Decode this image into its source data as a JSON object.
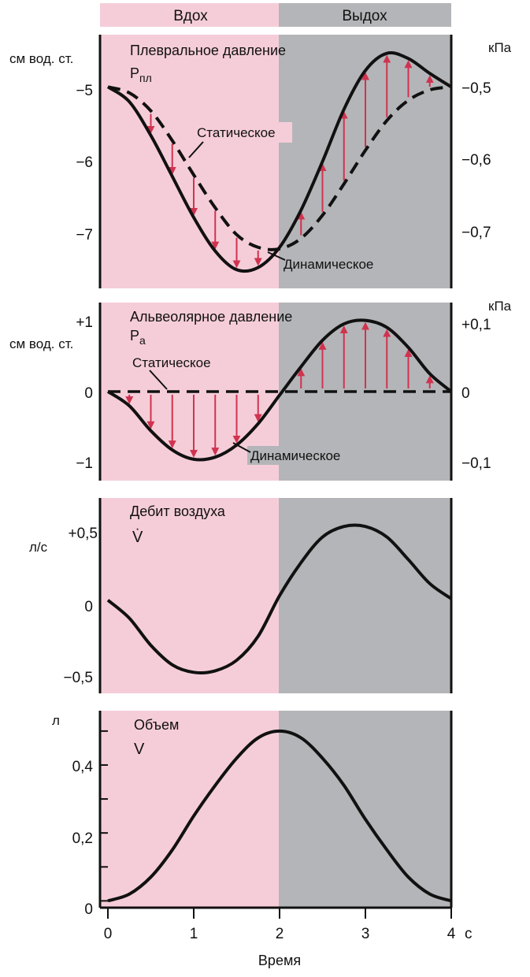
{
  "phases": {
    "inhale": "Вдох",
    "exhale": "Выдох"
  },
  "colors": {
    "inhale_bg": "#f5cdd9",
    "exhale_bg": "#b4b5b8",
    "arrow": "#d0334f",
    "curve": "#111111"
  },
  "xaxis": {
    "label": "Время",
    "unit": "с",
    "ticks": [
      "0",
      "1",
      "2",
      "3",
      "4"
    ]
  },
  "chart_data": [
    {
      "type": "line",
      "title": "Плевральное давление",
      "symbol": "P",
      "subscript": "пл",
      "ylabel_left": "см вод. ст.",
      "ylabel_right": "кПа",
      "left_ticks": [
        "−5",
        "−6",
        "−7"
      ],
      "right_ticks": [
        "−0,5",
        "−0,6",
        "−0,7"
      ],
      "ylim": [
        -7.7,
        -4.3
      ],
      "xlim": [
        0,
        4
      ],
      "x": [
        0,
        0.25,
        0.5,
        0.75,
        1,
        1.25,
        1.5,
        1.75,
        2,
        2.25,
        2.5,
        2.75,
        3,
        3.25,
        3.5,
        3.75,
        4
      ],
      "series": [
        {
          "name": "Динамическое",
          "style": "solid",
          "values": [
            -5.0,
            -5.2,
            -5.65,
            -6.2,
            -6.75,
            -7.2,
            -7.45,
            -7.42,
            -7.15,
            -6.65,
            -6.0,
            -5.3,
            -4.78,
            -4.55,
            -4.62,
            -4.82,
            -5.0
          ]
        },
        {
          "name": "Статическое",
          "style": "dashed",
          "values": [
            -5.0,
            -5.08,
            -5.32,
            -5.72,
            -6.18,
            -6.62,
            -6.98,
            -7.15,
            -7.17,
            -7.03,
            -6.72,
            -6.3,
            -5.85,
            -5.45,
            -5.18,
            -5.04,
            -5.0
          ]
        }
      ],
      "annotations": [
        "Статическое",
        "Динамическое"
      ]
    },
    {
      "type": "line",
      "title": "Альвеолярное давление",
      "symbol": "P",
      "subscript": "a",
      "ylabel_left": "см вод. ст.",
      "ylabel_right": "кПа",
      "left_ticks": [
        "+1",
        "0",
        "−1"
      ],
      "right_ticks": [
        "+0,1",
        "0",
        "−0,1"
      ],
      "ylim": [
        -1.25,
        1.25
      ],
      "xlim": [
        0,
        4
      ],
      "x": [
        0,
        0.25,
        0.5,
        0.75,
        1,
        1.25,
        1.5,
        1.75,
        2,
        2.25,
        2.5,
        2.75,
        3,
        3.25,
        3.5,
        3.75,
        4
      ],
      "series": [
        {
          "name": "Динамическое",
          "style": "solid",
          "values": [
            0,
            -0.2,
            -0.55,
            -0.82,
            -0.95,
            -0.92,
            -0.75,
            -0.45,
            -0.05,
            0.35,
            0.72,
            0.95,
            1.0,
            0.9,
            0.62,
            0.25,
            0
          ]
        },
        {
          "name": "Статическое",
          "style": "dashed",
          "values": [
            0,
            0,
            0,
            0,
            0,
            0,
            0,
            0,
            0,
            0,
            0,
            0,
            0,
            0,
            0,
            0,
            0
          ]
        }
      ],
      "annotations": [
        "Статическое",
        "Динамическое"
      ]
    },
    {
      "type": "line",
      "title": "Дебит воздуха",
      "symbol": "V̇",
      "ylabel_left": "л/с",
      "left_ticks": [
        "+0,5",
        "0",
        "−0,5"
      ],
      "ylim": [
        -0.62,
        0.68
      ],
      "xlim": [
        0,
        4
      ],
      "x": [
        0,
        0.25,
        0.5,
        0.75,
        1,
        1.25,
        1.5,
        1.75,
        2,
        2.25,
        2.5,
        2.75,
        3,
        3.25,
        3.5,
        3.75,
        4
      ],
      "series": [
        {
          "name": "",
          "style": "solid",
          "values": [
            0,
            -0.12,
            -0.3,
            -0.43,
            -0.48,
            -0.47,
            -0.4,
            -0.24,
            0.03,
            0.25,
            0.42,
            0.49,
            0.49,
            0.42,
            0.27,
            0.11,
            0.01
          ]
        }
      ]
    },
    {
      "type": "line",
      "title": "Объем",
      "symbol": "V",
      "ylabel_left": "л",
      "left_ticks": [
        "0,4",
        "0,2",
        "0"
      ],
      "ylim": [
        -0.02,
        0.56
      ],
      "xlim": [
        0,
        4
      ],
      "x": [
        0,
        0.25,
        0.5,
        0.75,
        1,
        1.25,
        1.5,
        1.75,
        2,
        2.25,
        2.5,
        2.75,
        3,
        3.25,
        3.5,
        3.75,
        4
      ],
      "series": [
        {
          "name": "",
          "style": "solid",
          "values": [
            0,
            0.02,
            0.07,
            0.15,
            0.25,
            0.34,
            0.42,
            0.48,
            0.5,
            0.48,
            0.42,
            0.34,
            0.24,
            0.15,
            0.07,
            0.02,
            0
          ]
        }
      ]
    }
  ]
}
